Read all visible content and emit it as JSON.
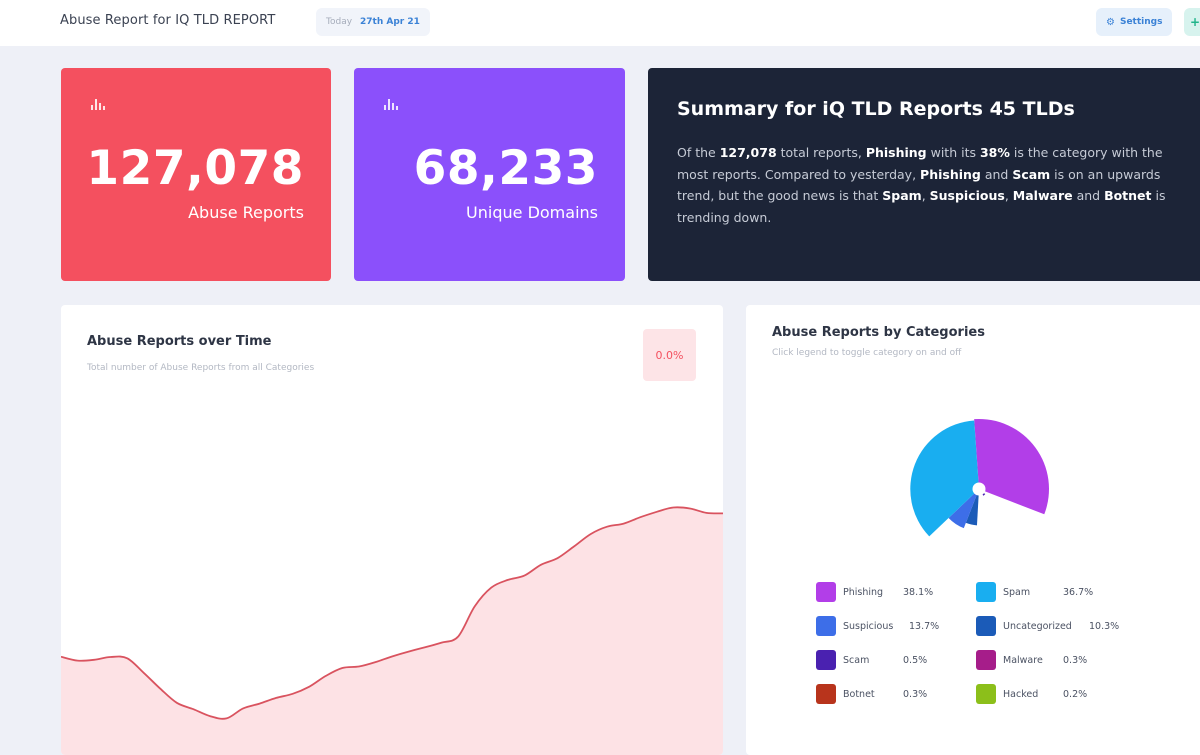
{
  "header": {
    "title": "Abuse Report for IQ TLD REPORT",
    "date_label": "Today",
    "date_value": "27th Apr 21",
    "settings_label": "Settings",
    "extra_button_icon": "plus-icon"
  },
  "stats": [
    {
      "value": "127,078",
      "label": "Abuse Reports",
      "color": "#f4505f",
      "icon": "bar-chart-icon"
    },
    {
      "value": "68,233",
      "label": "Unique Domains",
      "color": "#8b50fb",
      "icon": "bar-chart-icon"
    }
  ],
  "summary": {
    "title": "Summary for iQ TLD Reports 45 TLDs",
    "parts": [
      {
        "t": "Of the ",
        "b": false
      },
      {
        "t": "127,078",
        "b": true
      },
      {
        "t": " total reports, ",
        "b": false
      },
      {
        "t": "Phishing",
        "b": true
      },
      {
        "t": " with its ",
        "b": false
      },
      {
        "t": "38%",
        "b": true
      },
      {
        "t": " is the category with the most reports. Compared to yesterday, ",
        "b": false
      },
      {
        "t": "Phishing",
        "b": true
      },
      {
        "t": " and ",
        "b": false
      },
      {
        "t": "Scam",
        "b": true
      },
      {
        "t": " is on an upwards trend, but the good news is that ",
        "b": false
      },
      {
        "t": "Spam",
        "b": true
      },
      {
        "t": ", ",
        "b": false
      },
      {
        "t": "Suspicious",
        "b": true
      },
      {
        "t": ", ",
        "b": false
      },
      {
        "t": "Malware",
        "b": true
      },
      {
        "t": " and ",
        "b": false
      },
      {
        "t": "Botnet",
        "b": true
      },
      {
        "t": " is trending down.",
        "b": false
      }
    ]
  },
  "time_panel": {
    "title": "Abuse Reports over Time",
    "subtitle": "Total number of Abuse Reports from all Categories",
    "change_badge": "0.0%"
  },
  "category_panel": {
    "title": "Abuse Reports by Categories",
    "subtitle": "Click legend to toggle category on and off"
  },
  "chart_data": [
    {
      "type": "area",
      "title": "Abuse Reports over Time",
      "subtitle": "Total number of Abuse Reports from all Categories",
      "axes_visible": false,
      "grid": false,
      "line_color": "#d9535f",
      "fill_color": "#fde2e5",
      "x": [
        0,
        1,
        2,
        3,
        4,
        5,
        6,
        7,
        8,
        9,
        10,
        11,
        12,
        13,
        14,
        15,
        16,
        17,
        18,
        19,
        20,
        21,
        22,
        23,
        24,
        25,
        26,
        27,
        28,
        29,
        30,
        31,
        32,
        33,
        34,
        35,
        36,
        37,
        38,
        39,
        40
      ],
      "values": [
        33.7,
        32.2,
        32.5,
        33.6,
        33.1,
        27.4,
        21.2,
        15.7,
        13.2,
        10.5,
        9.6,
        13.5,
        15.4,
        17.6,
        19.2,
        22.0,
        26.2,
        29.3,
        29.9,
        31.6,
        33.8,
        35.7,
        37.4,
        39.2,
        41.6,
        53.4,
        60.7,
        63.7,
        65.4,
        69.6,
        72.2,
        76.8,
        81.6,
        84.5,
        85.7,
        88.2,
        90.3,
        92.0,
        91.6,
        89.9,
        89.7
      ]
    },
    {
      "type": "pie",
      "variant": "nightingale-rose",
      "title": "Abuse Reports by Categories",
      "subtitle": "Click legend to toggle category on and off",
      "legend": "bottom",
      "slices": [
        {
          "name": "Phishing",
          "value": 38.1,
          "label": "38.1%",
          "color": "#b23ee8"
        },
        {
          "name": "Spam",
          "value": 36.7,
          "label": "36.7%",
          "color": "#19aef0"
        },
        {
          "name": "Suspicious",
          "value": 13.7,
          "label": "13.7%",
          "color": "#3d6ee8"
        },
        {
          "name": "Uncategorized",
          "value": 10.3,
          "label": "10.3%",
          "color": "#1b5bb8"
        },
        {
          "name": "Scam",
          "value": 0.5,
          "label": "0.5%",
          "color": "#4a21b0"
        },
        {
          "name": "Malware",
          "value": 0.3,
          "label": "0.3%",
          "color": "#a61d8a"
        },
        {
          "name": "Botnet",
          "value": 0.3,
          "label": "0.3%",
          "color": "#b8341c"
        },
        {
          "name": "Hacked",
          "value": 0.2,
          "label": "0.2%",
          "color": "#8cbf1a"
        }
      ]
    }
  ]
}
